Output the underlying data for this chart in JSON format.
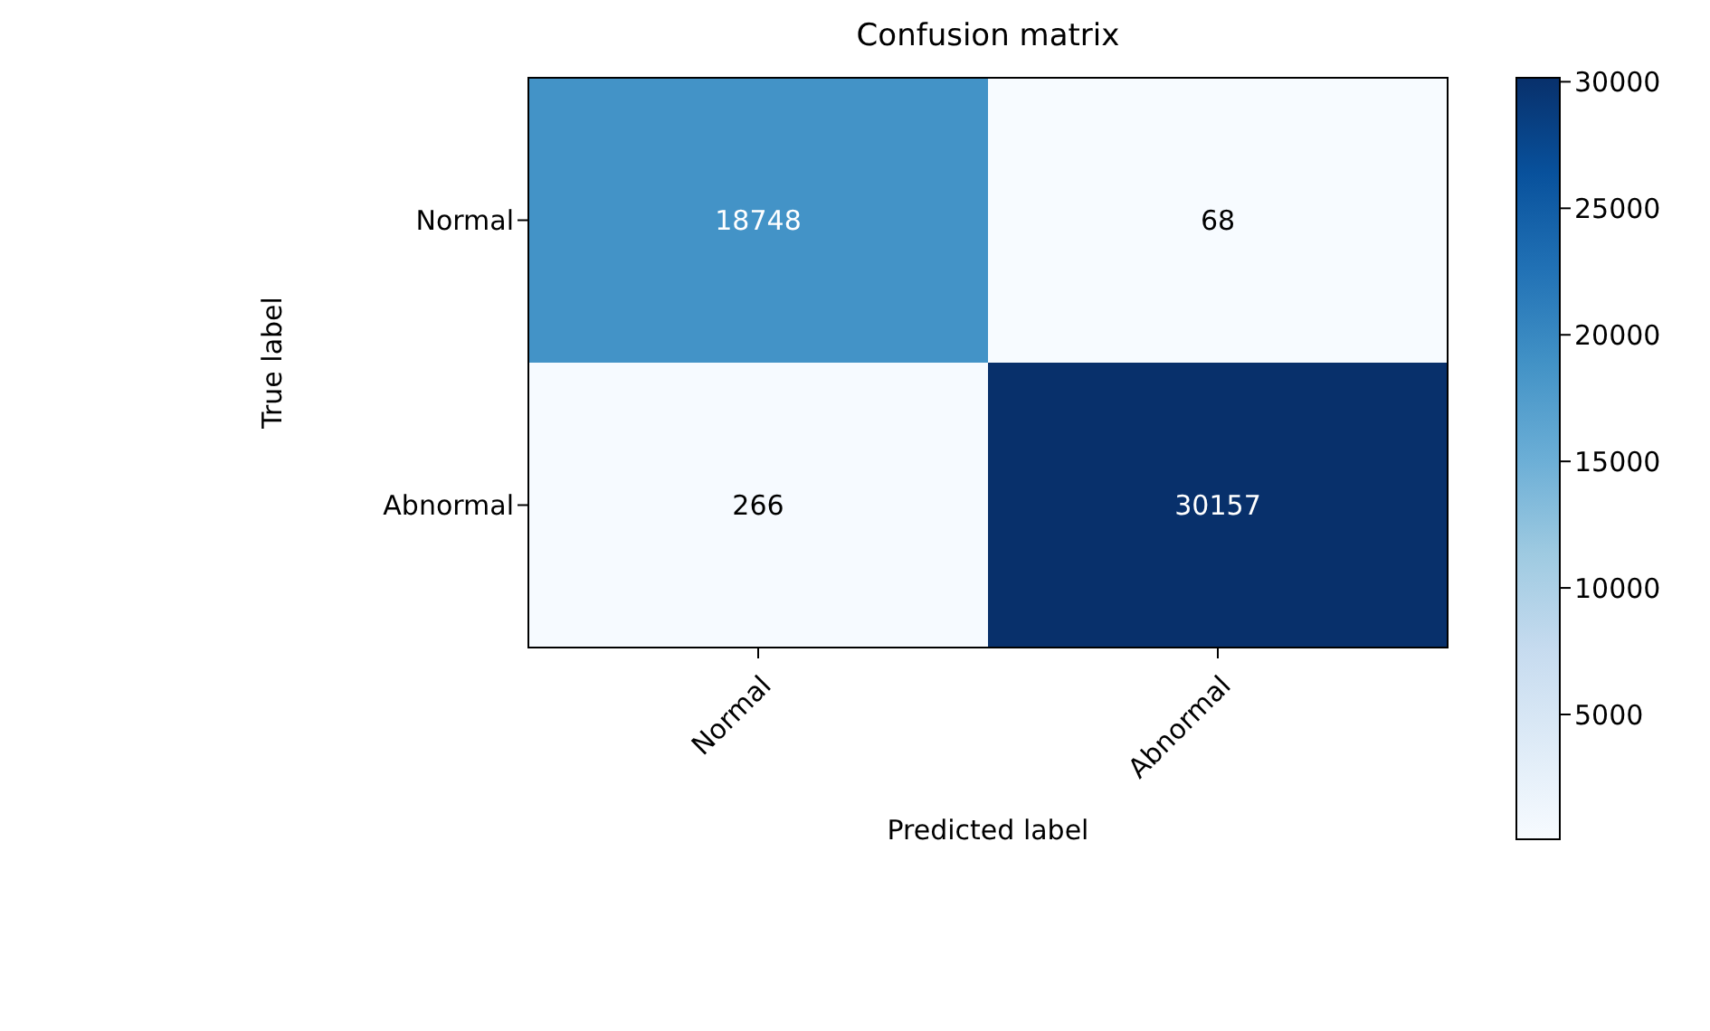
{
  "chart_data": {
    "type": "heatmap",
    "title": "Confusion matrix",
    "xlabel": "Predicted label",
    "ylabel": "True label",
    "categories": [
      "Normal",
      "Abnormal"
    ],
    "y_categories": [
      "Normal",
      "Abnormal"
    ],
    "cells": [
      [
        18748,
        68
      ],
      [
        266,
        30157
      ]
    ],
    "clim": [
      68,
      30157
    ],
    "cticks": [
      5000,
      10000,
      15000,
      20000,
      25000,
      30000
    ],
    "data_labels": true
  }
}
